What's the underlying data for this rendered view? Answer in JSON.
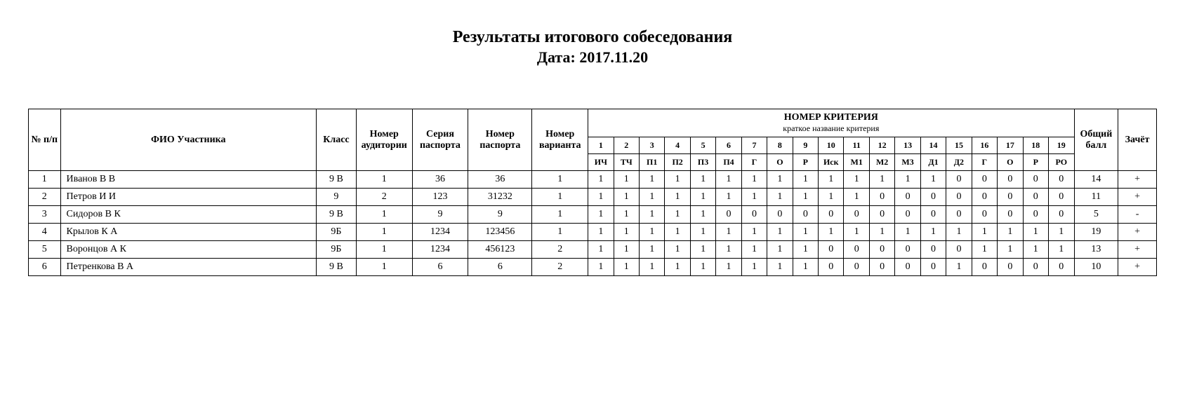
{
  "title": "Результаты итогового собеседования",
  "subtitle": "Дата: 2017.11.20",
  "headers": {
    "num": "№ п/п",
    "fio": "ФИО Участника",
    "class": "Класс",
    "audience": "Номер аудитории",
    "passport_series": "Серия паспорта",
    "passport_number": "Номер паспорта",
    "variant": "Номер варианта",
    "criteria_title": "НОМЕР КРИТЕРИЯ",
    "criteria_sub": "краткое название критерия",
    "total": "Общий балл",
    "pass": "Зачёт"
  },
  "criteria_numbers": [
    "1",
    "2",
    "3",
    "4",
    "5",
    "6",
    "7",
    "8",
    "9",
    "10",
    "11",
    "12",
    "13",
    "14",
    "15",
    "16",
    "17",
    "18",
    "19"
  ],
  "criteria_labels": [
    "ИЧ",
    "ТЧ",
    "П1",
    "П2",
    "П3",
    "П4",
    "Г",
    "О",
    "Р",
    "Иск",
    "М1",
    "М2",
    "М3",
    "Д1",
    "Д2",
    "Г",
    "О",
    "Р",
    "РО"
  ],
  "rows": [
    {
      "n": "1",
      "fio": "Иванов В В",
      "class": "9 В",
      "aud": "1",
      "ser": "36",
      "passnum": "36",
      "var": "1",
      "scores": [
        "1",
        "1",
        "1",
        "1",
        "1",
        "1",
        "1",
        "1",
        "1",
        "1",
        "1",
        "1",
        "1",
        "1",
        "0",
        "0",
        "0",
        "0",
        "0"
      ],
      "total": "14",
      "pass": "+"
    },
    {
      "n": "2",
      "fio": "Петров И И",
      "class": "9",
      "aud": "2",
      "ser": "123",
      "passnum": "31232",
      "var": "1",
      "scores": [
        "1",
        "1",
        "1",
        "1",
        "1",
        "1",
        "1",
        "1",
        "1",
        "1",
        "1",
        "0",
        "0",
        "0",
        "0",
        "0",
        "0",
        "0",
        "0"
      ],
      "total": "11",
      "pass": "+"
    },
    {
      "n": "3",
      "fio": "Сидоров В К",
      "class": "9 В",
      "aud": "1",
      "ser": "9",
      "passnum": "9",
      "var": "1",
      "scores": [
        "1",
        "1",
        "1",
        "1",
        "1",
        "0",
        "0",
        "0",
        "0",
        "0",
        "0",
        "0",
        "0",
        "0",
        "0",
        "0",
        "0",
        "0",
        "0"
      ],
      "total": "5",
      "pass": "-"
    },
    {
      "n": "4",
      "fio": "Крылов К А",
      "class": "9Б",
      "aud": "1",
      "ser": "1234",
      "passnum": "123456",
      "var": "1",
      "scores": [
        "1",
        "1",
        "1",
        "1",
        "1",
        "1",
        "1",
        "1",
        "1",
        "1",
        "1",
        "1",
        "1",
        "1",
        "1",
        "1",
        "1",
        "1",
        "1"
      ],
      "total": "19",
      "pass": "+"
    },
    {
      "n": "5",
      "fio": "Воронцов А К",
      "class": "9Б",
      "aud": "1",
      "ser": "1234",
      "passnum": "456123",
      "var": "2",
      "scores": [
        "1",
        "1",
        "1",
        "1",
        "1",
        "1",
        "1",
        "1",
        "1",
        "0",
        "0",
        "0",
        "0",
        "0",
        "0",
        "1",
        "1",
        "1",
        "1"
      ],
      "total": "13",
      "pass": "+"
    },
    {
      "n": "6",
      "fio": "Петренкова В А",
      "class": "9 В",
      "aud": "1",
      "ser": "6",
      "passnum": "6",
      "var": "2",
      "scores": [
        "1",
        "1",
        "1",
        "1",
        "1",
        "1",
        "1",
        "1",
        "1",
        "0",
        "0",
        "0",
        "0",
        "0",
        "1",
        "0",
        "0",
        "0",
        "0"
      ],
      "total": "10",
      "pass": "+"
    }
  ]
}
